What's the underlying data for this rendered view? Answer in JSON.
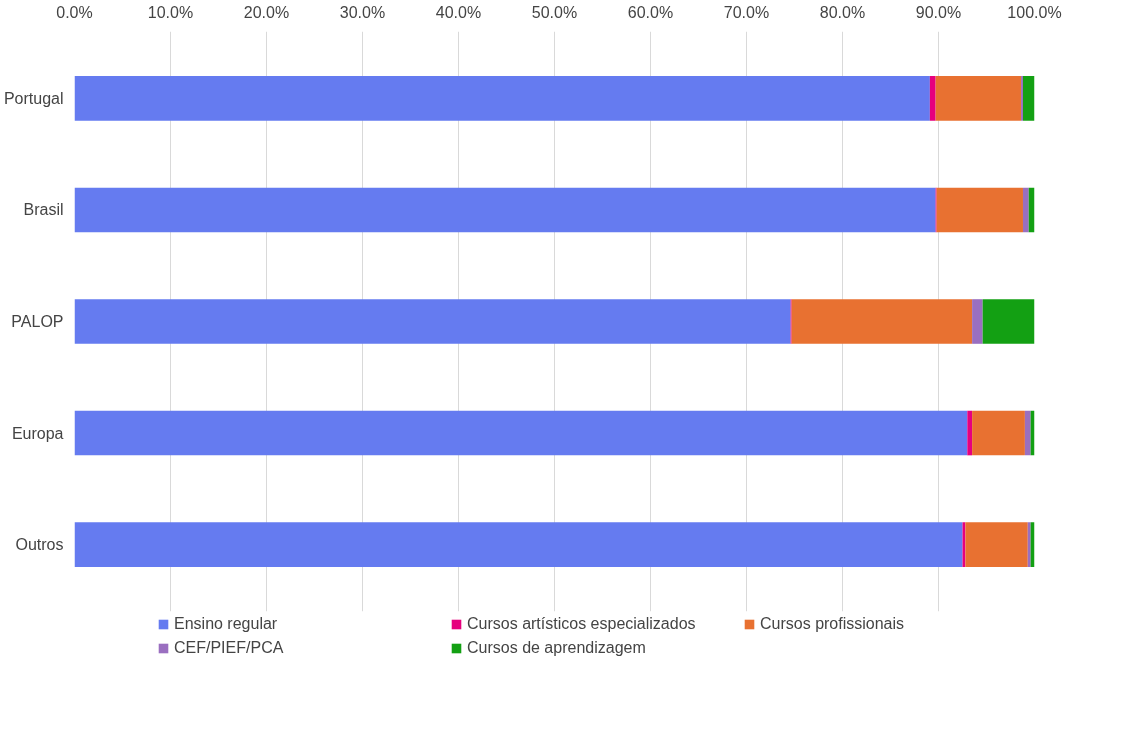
{
  "chart_data": {
    "type": "bar",
    "orientation": "horizontal",
    "stacked": true,
    "categories": [
      "Portugal",
      "Brasil",
      "PALOP",
      "Europa",
      "Outros"
    ],
    "series": [
      {
        "name": "Ensino regular",
        "color": "#657bf0",
        "values": [
          89.1,
          89.7,
          74.6,
          93.0,
          92.5
        ]
      },
      {
        "name": "Cursos artísticos especializados",
        "color": "#e6007e",
        "values": [
          0.6,
          0.1,
          0.1,
          0.5,
          0.3
        ]
      },
      {
        "name": "Cursos profissionais",
        "color": "#e87131",
        "values": [
          8.9,
          9.0,
          18.8,
          5.5,
          6.5
        ]
      },
      {
        "name": "CEF/PIEF/PCA",
        "color": "#9a6fc0",
        "values": [
          0.2,
          0.6,
          1.1,
          0.6,
          0.3
        ]
      },
      {
        "name": "Cursos de aprendizagem",
        "color": "#13a013",
        "values": [
          1.2,
          0.6,
          5.4,
          0.4,
          0.4
        ]
      }
    ],
    "xlim": [
      0,
      100
    ],
    "xticks": [
      {
        "value": 0,
        "label": "0.0%"
      },
      {
        "value": 10,
        "label": "10.0%"
      },
      {
        "value": 20,
        "label": "20.0%"
      },
      {
        "value": 30,
        "label": "30.0%"
      },
      {
        "value": 40,
        "label": "40.0%"
      },
      {
        "value": 50,
        "label": "50.0%"
      },
      {
        "value": 60,
        "label": "60.0%"
      },
      {
        "value": 70,
        "label": "70.0%"
      },
      {
        "value": 80,
        "label": "80.0%"
      },
      {
        "value": 90,
        "label": "90.0%"
      },
      {
        "value": 100,
        "label": "100.0%"
      }
    ],
    "grid": "x",
    "legend": "bottom"
  }
}
